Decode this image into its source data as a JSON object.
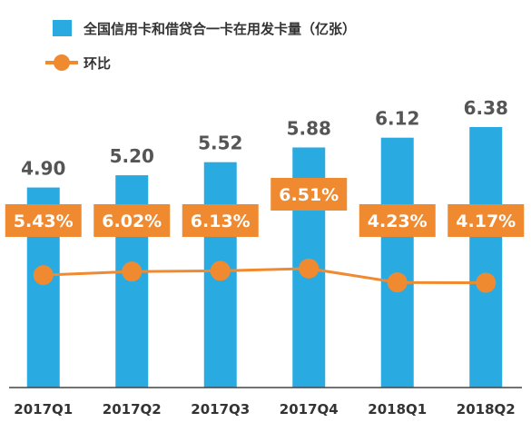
{
  "legend": {
    "bar_label": "全国信用卡和借贷合一卡在用发卡量（亿张）",
    "line_label": "环比"
  },
  "colors": {
    "bar": "#29ABE2",
    "line": "#F08A30",
    "pct_box": "#F08A30",
    "axis": "#444444"
  },
  "chart_data": {
    "type": "bar",
    "categories": [
      "2017Q1",
      "2017Q2",
      "2017Q3",
      "2017Q4",
      "2018Q1",
      "2018Q2"
    ],
    "series": [
      {
        "name": "全国信用卡和借贷合一卡在用发卡量（亿张）",
        "type": "bar",
        "values": [
          4.9,
          5.2,
          5.52,
          5.88,
          6.12,
          6.38
        ],
        "labels": [
          "4.90",
          "5.20",
          "5.52",
          "5.88",
          "6.12",
          "6.38"
        ]
      },
      {
        "name": "环比",
        "type": "line",
        "values": [
          5.43,
          6.02,
          6.13,
          6.51,
          4.23,
          4.17
        ],
        "labels": [
          "5.43%",
          "6.02%",
          "6.13%",
          "6.51%",
          "4.23%",
          "4.17%"
        ]
      }
    ]
  }
}
